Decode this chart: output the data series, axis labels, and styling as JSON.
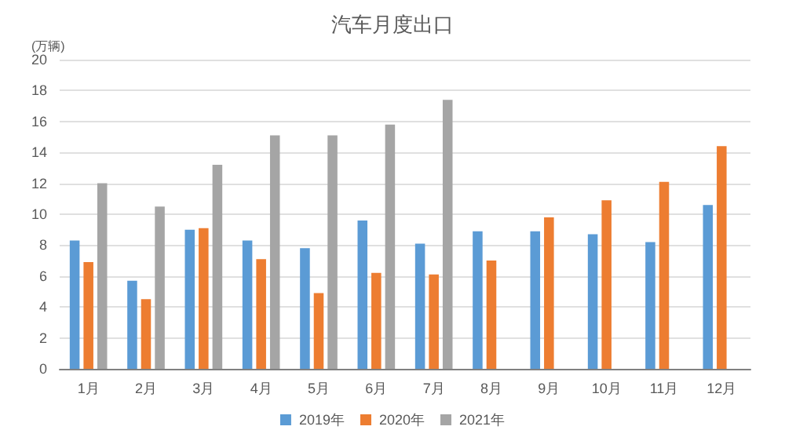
{
  "chart_data": {
    "type": "bar",
    "title": "汽车月度出口",
    "ylabel": "(万辆)",
    "categories": [
      "1月",
      "2月",
      "3月",
      "4月",
      "5月",
      "6月",
      "7月",
      "8月",
      "9月",
      "10月",
      "11月",
      "12月"
    ],
    "series": [
      {
        "name": "2019年",
        "color": "#5b9bd5",
        "values": [
          8.3,
          5.7,
          9.0,
          8.3,
          7.8,
          9.6,
          8.1,
          8.9,
          8.9,
          8.7,
          8.2,
          10.6
        ]
      },
      {
        "name": "2020年",
        "color": "#ed7d31",
        "values": [
          6.9,
          4.5,
          9.1,
          7.1,
          4.9,
          6.2,
          6.1,
          7.0,
          9.8,
          10.9,
          12.1,
          14.4
        ]
      },
      {
        "name": "2021年",
        "color": "#a5a5a5",
        "values": [
          12.0,
          10.5,
          13.2,
          15.1,
          15.1,
          15.8,
          17.4,
          null,
          null,
          null,
          null,
          null
        ]
      }
    ],
    "ylim": [
      0,
      20
    ],
    "yticks": [
      0,
      2,
      4,
      6,
      8,
      10,
      12,
      14,
      16,
      18,
      20
    ],
    "grid": "y",
    "legend": "bottom"
  }
}
